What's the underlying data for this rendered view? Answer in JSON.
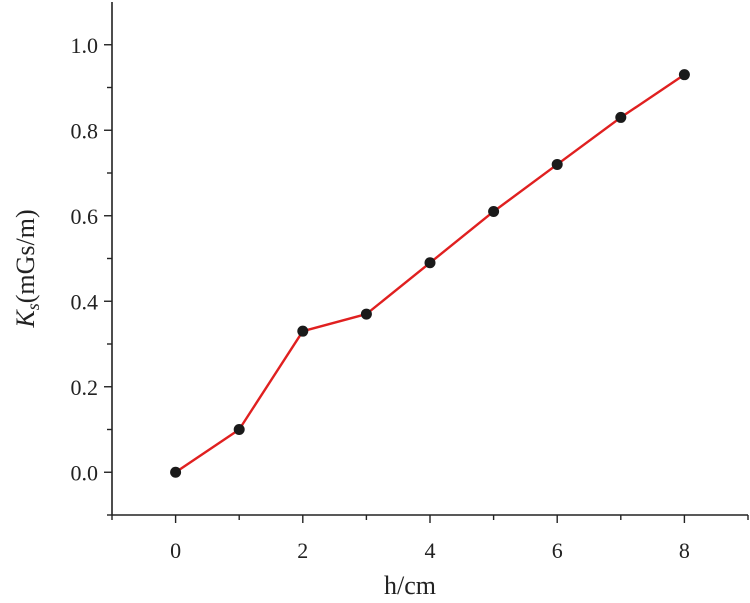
{
  "chart_data": {
    "type": "line",
    "xlabel": "h/cm",
    "ylabel_main": "K",
    "ylabel_sub": "s",
    "ylabel_unit": "(mGs/m)",
    "xlim": [
      -1,
      9
    ],
    "ylim": [
      -0.1,
      1.1
    ],
    "xticks": [
      0,
      2,
      4,
      6,
      8
    ],
    "xtick_labels": [
      "0",
      "2",
      "4",
      "6",
      "8"
    ],
    "x_minor_ticks": [
      -1,
      1,
      3,
      5,
      7,
      9
    ],
    "yticks": [
      0.0,
      0.2,
      0.4,
      0.6,
      0.8,
      1.0
    ],
    "ytick_labels": [
      "0.0",
      "0.2",
      "0.4",
      "0.6",
      "0.8",
      "1.0"
    ],
    "y_minor_ticks": [
      -0.1,
      0.1,
      0.3,
      0.5,
      0.7,
      0.9
    ],
    "grid": false,
    "series": [
      {
        "x": [
          0,
          1,
          2,
          3,
          4,
          5,
          6,
          7,
          8
        ],
        "values": [
          0.0,
          0.1,
          0.33,
          0.37,
          0.49,
          0.61,
          0.72,
          0.83,
          0.93
        ],
        "line_color": "#e02020",
        "marker_color": "#1a1a1a"
      }
    ]
  }
}
